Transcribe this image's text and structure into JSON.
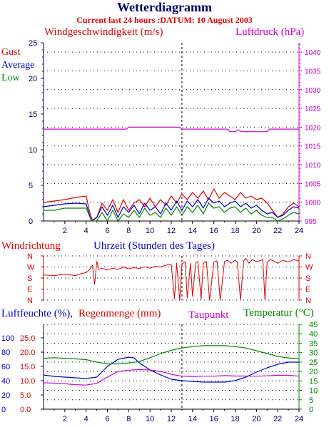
{
  "page": {
    "title": "Wetterdiagramm",
    "subtitle": "Current last 24 hours :DATUM: 10 August 2003"
  },
  "colors": {
    "wind_gust": "#dd0000",
    "wind_average": "#0000cc",
    "wind_low": "#008800",
    "pressure": "#cc00cc",
    "direction": "#dd0000",
    "humidity": "#0000cc",
    "rain": "#dd0000",
    "dewpoint": "#cc00cc",
    "temperature": "#008800",
    "axis_dark": "#000066"
  },
  "chart_data": [
    {
      "type": "line",
      "id": "wind_pressure",
      "left_label": "Windgeschwindigkeit (m/s)",
      "right_label": "Luftdruck (hPa)",
      "legend": [
        "Gust",
        "Average",
        "Low"
      ],
      "xlim": [
        0,
        24
      ],
      "x_ticks": [
        "2",
        "4",
        "6",
        "8",
        "10",
        "12",
        "14",
        "16",
        "18",
        "20",
        "22",
        "24"
      ],
      "ylim_left": [
        0,
        25
      ],
      "y_ticks_left": [
        "0",
        "5",
        "10",
        "15",
        "20",
        "25"
      ],
      "ylim_right": [
        995,
        1042.5
      ],
      "y_ticks_right": [
        "995",
        "1000",
        "1005",
        "1010",
        "1015",
        "1020",
        "1025",
        "1030",
        "1035",
        "1040"
      ],
      "marker_hour": 13,
      "series": [
        {
          "name": "Gust",
          "axis": "left",
          "x": [
            0,
            1,
            2,
            3,
            4,
            4.3,
            4.6,
            5,
            5.5,
            6,
            6.5,
            7,
            7.5,
            8,
            8.5,
            9,
            9.5,
            10,
            10.5,
            11,
            11.5,
            12,
            12.5,
            13,
            13.5,
            14,
            14.5,
            15,
            15.5,
            16,
            16.5,
            17,
            17.5,
            18,
            18.5,
            19,
            19.5,
            20,
            20.5,
            21,
            21.5,
            22,
            22.5,
            23,
            23.5,
            24
          ],
          "y": [
            2.6,
            2.8,
            3.0,
            3.3,
            3.5,
            1.5,
            0,
            0.5,
            2.5,
            1.5,
            3.0,
            1.2,
            3.0,
            1.5,
            2.5,
            3.0,
            2.0,
            3.2,
            2.0,
            3.0,
            2.2,
            3.5,
            2.5,
            3.8,
            3.0,
            4.0,
            3.2,
            4.2,
            3.0,
            4.5,
            3.2,
            4.0,
            3.5,
            3.0,
            4.0,
            3.2,
            3.5,
            3.0,
            3.2,
            2.5,
            1.5,
            0.5,
            1.0,
            2.0,
            2.5,
            2.0
          ]
        },
        {
          "name": "Average",
          "axis": "left",
          "x": [
            0,
            1,
            2,
            3,
            4,
            4.5,
            5,
            5.5,
            6,
            6.5,
            7,
            7.5,
            8,
            8.5,
            9,
            9.5,
            10,
            10.5,
            11,
            11.5,
            12,
            12.5,
            13,
            13.5,
            14,
            14.5,
            15,
            15.5,
            16,
            16.5,
            17,
            17.5,
            18,
            18.5,
            19,
            19.5,
            20,
            20.5,
            21,
            21.5,
            22,
            22.5,
            23,
            23.5,
            24
          ],
          "y": [
            2.0,
            2.2,
            2.4,
            2.5,
            2.4,
            0,
            0.5,
            2.0,
            0.8,
            2.2,
            0.5,
            2.0,
            1.2,
            2.2,
            1.0,
            2.5,
            1.5,
            2.0,
            1.0,
            2.5,
            1.5,
            2.8,
            1.5,
            2.8,
            2.0,
            3.0,
            1.8,
            3.2,
            2.5,
            2.8,
            2.0,
            2.5,
            2.8,
            2.0,
            2.5,
            1.8,
            2.2,
            1.5,
            1.0,
            1.2,
            0.5,
            0.8,
            1.5,
            2.0,
            1.8
          ]
        },
        {
          "name": "Low",
          "axis": "left",
          "x": [
            0,
            1,
            2,
            3,
            4,
            4.5,
            5,
            5.5,
            6,
            6.5,
            7,
            7.5,
            8,
            8.5,
            9,
            9.5,
            10,
            10.5,
            11,
            11.5,
            12,
            12.5,
            13,
            13.5,
            14,
            14.5,
            15,
            15.5,
            16,
            16.5,
            17,
            17.5,
            18,
            18.5,
            19,
            19.5,
            20,
            20.5,
            21,
            21.5,
            22,
            22.5,
            23,
            23.5,
            24
          ],
          "y": [
            1.5,
            1.5,
            1.8,
            1.8,
            1.8,
            0,
            0,
            1.2,
            0,
            1.5,
            0,
            1.0,
            0.5,
            1.5,
            0.5,
            1.8,
            0.8,
            1.2,
            0.5,
            1.8,
            0.8,
            2.0,
            0.8,
            2.0,
            1.2,
            2.2,
            1.0,
            2.5,
            1.8,
            2.0,
            1.2,
            1.8,
            2.0,
            1.2,
            1.8,
            1.0,
            1.5,
            0.8,
            0.5,
            0.5,
            0,
            0.3,
            0.8,
            1.2,
            1.0
          ]
        },
        {
          "name": "Luftdruck",
          "axis": "right",
          "x": [
            0,
            6,
            7.8,
            8,
            12.8,
            13,
            17.3,
            17.5,
            18,
            18.3,
            18.6,
            21,
            21.2,
            24
          ],
          "y": [
            1019.5,
            1019.5,
            1019.5,
            1020.0,
            1020.0,
            1019.5,
            1019.5,
            1018.8,
            1018.8,
            1019.3,
            1018.8,
            1018.8,
            1019.5,
            1019.5
          ]
        }
      ]
    },
    {
      "type": "line",
      "id": "direction",
      "left_label": "Windrichtung",
      "x_label": "Uhrzeit (Stunden des Tages)",
      "xlim": [
        0,
        24
      ],
      "y_labels": [
        "N",
        "W",
        "S",
        "E",
        "N"
      ],
      "ylim": [
        0,
        360
      ],
      "marker_hour": 13,
      "series": [
        {
          "name": "Windrichtung",
          "x": [
            0,
            1,
            2,
            3,
            3.5,
            4,
            4.3,
            4.6,
            4.8,
            5,
            5.2,
            5.5,
            6,
            6.5,
            7,
            7.5,
            8,
            8.5,
            9,
            9.5,
            10,
            10.5,
            11,
            11.5,
            12,
            12.3,
            12.5,
            12.8,
            13,
            13.3,
            13.5,
            13.8,
            14,
            14.3,
            14.5,
            14.8,
            15,
            15.3,
            15.6,
            16,
            16.3,
            16.6,
            17,
            17.3,
            17.6,
            18,
            18.2,
            18.5,
            18.8,
            19,
            19.3,
            19.6,
            20,
            20.3,
            20.6,
            20.8,
            21,
            21.3,
            21.6,
            22,
            22.5,
            23,
            23.5,
            24
          ],
          "y": [
            205,
            200,
            210,
            200,
            215,
            225,
            245,
            285,
            130,
            315,
            250,
            260,
            245,
            260,
            250,
            270,
            255,
            265,
            258,
            272,
            260,
            275,
            270,
            285,
            290,
            10,
            300,
            0,
            295,
            310,
            20,
            300,
            30,
            305,
            315,
            5,
            300,
            315,
            0,
            310,
            320,
            0,
            315,
            325,
            300,
            325,
            310,
            0,
            320,
            340,
            300,
            330,
            315,
            320,
            330,
            0,
            310,
            330,
            320,
            300,
            325,
            310,
            330,
            320
          ]
        }
      ]
    },
    {
      "type": "line",
      "id": "climate",
      "left_label_a": "Luftfeuchte (%),",
      "left_label_b": "Regenmenge (mm)",
      "middle_label": "Taupunkt",
      "right_label": "Temperatur (°C)",
      "xlim": [
        0,
        24
      ],
      "x_ticks": [
        "2",
        "4",
        "6",
        "8",
        "10",
        "12",
        "14",
        "16",
        "18",
        "20",
        "22",
        "24"
      ],
      "y_ticks_humidity": [
        "0",
        "20",
        "40",
        "60",
        "80",
        "100"
      ],
      "y_ticks_rain": [
        "0.0",
        "5.0",
        "10.0",
        "15.0",
        "20.0",
        "25.0"
      ],
      "y_ticks_temp": [
        "0",
        "5",
        "10",
        "15",
        "20",
        "25",
        "30",
        "35",
        "40",
        "45"
      ],
      "ylim_left": [
        0,
        100
      ],
      "ylim_right": [
        0,
        45
      ],
      "marker_hour": 13,
      "series": [
        {
          "name": "Luftfeuchte",
          "axis": "left",
          "x": [
            0,
            1,
            2,
            3,
            4,
            5,
            6,
            7,
            8,
            8.5,
            9,
            10,
            11,
            12,
            13,
            14,
            15,
            16,
            17,
            18,
            19,
            20,
            21,
            22,
            23,
            24
          ],
          "y": [
            48,
            46,
            45,
            44,
            43,
            45,
            60,
            70,
            73,
            72,
            65,
            55,
            48,
            42,
            40,
            39,
            38,
            38,
            38,
            40,
            45,
            52,
            58,
            63,
            66,
            66
          ]
        },
        {
          "name": "Temperatur",
          "axis": "right",
          "x": [
            0,
            1,
            2,
            3,
            4,
            5,
            6,
            7,
            8,
            9,
            10,
            11,
            12,
            13,
            14,
            15,
            16,
            17,
            18,
            19,
            20,
            21,
            22,
            23,
            24
          ],
          "y": [
            27,
            27.3,
            27,
            26.7,
            26.3,
            25,
            24,
            24,
            24.5,
            25.3,
            27.3,
            29.5,
            31.2,
            32.5,
            33.2,
            33.7,
            33.7,
            33.7,
            33.2,
            32.5,
            31,
            29.5,
            28,
            27.2,
            26.7
          ]
        },
        {
          "name": "Taupunkt",
          "axis": "right",
          "x": [
            0,
            1,
            2,
            3,
            4,
            5,
            6,
            7,
            8,
            9,
            10,
            11,
            12,
            13,
            14,
            15,
            16,
            17,
            18,
            19,
            20,
            21,
            22,
            23,
            24
          ],
          "y": [
            14,
            13.8,
            13.5,
            13,
            12.8,
            13.7,
            17,
            20,
            20.7,
            21,
            20.8,
            20,
            18.5,
            17.5,
            17.3,
            17.5,
            17.5,
            17.8,
            17.6,
            17.6,
            17.5,
            17.7,
            18,
            18,
            17.5
          ]
        }
      ]
    }
  ]
}
